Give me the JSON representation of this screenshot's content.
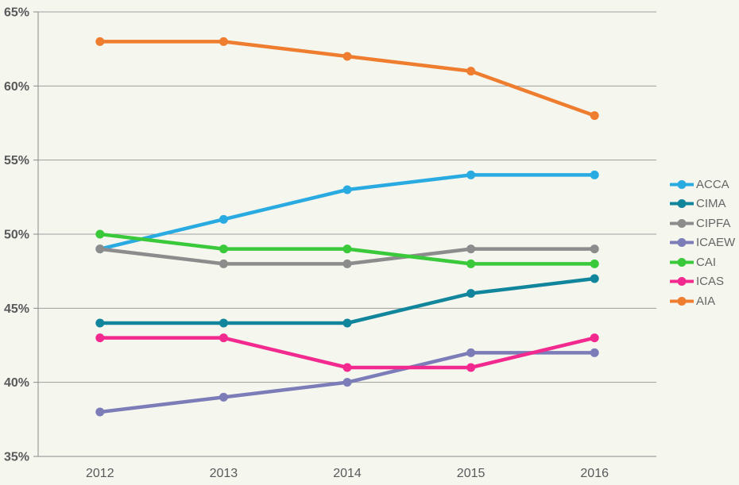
{
  "chart_data": {
    "type": "line",
    "title": "",
    "xlabel": "",
    "ylabel": "",
    "categories": [
      "2012",
      "2013",
      "2014",
      "2015",
      "2016"
    ],
    "series": [
      {
        "name": "ACCA",
        "color": "#29abe2",
        "values": [
          49,
          51,
          53,
          54,
          54
        ]
      },
      {
        "name": "CIMA",
        "color": "#11859c",
        "values": [
          44,
          44,
          44,
          46,
          47
        ]
      },
      {
        "name": "CIPFA",
        "color": "#8c8c8c",
        "values": [
          49,
          48,
          48,
          49,
          49
        ]
      },
      {
        "name": "ICAEW",
        "color": "#7b7cb8",
        "values": [
          38,
          39,
          40,
          42,
          42
        ]
      },
      {
        "name": "CAI",
        "color": "#3ac93a",
        "values": [
          50,
          49,
          49,
          48,
          48
        ]
      },
      {
        "name": "ICAS",
        "color": "#f2298f",
        "values": [
          43,
          43,
          41,
          41,
          43
        ]
      },
      {
        "name": "AIA",
        "color": "#ef7d2f",
        "values": [
          63,
          63,
          62,
          61,
          58
        ]
      }
    ],
    "ylim": [
      35,
      65
    ],
    "ytick_step": 5,
    "ytick_suffix": "%",
    "y_tick_labels": [
      "35%",
      "40%",
      "45%",
      "50%",
      "55%",
      "60%",
      "65%"
    ],
    "grid": true,
    "legend_position": "right"
  },
  "colors": {
    "background": "#f5f6ee",
    "gridline": "#9e9e9e",
    "axis": "#8a8a8a",
    "tick_label": "#58595b",
    "legend_text": "#666666"
  }
}
